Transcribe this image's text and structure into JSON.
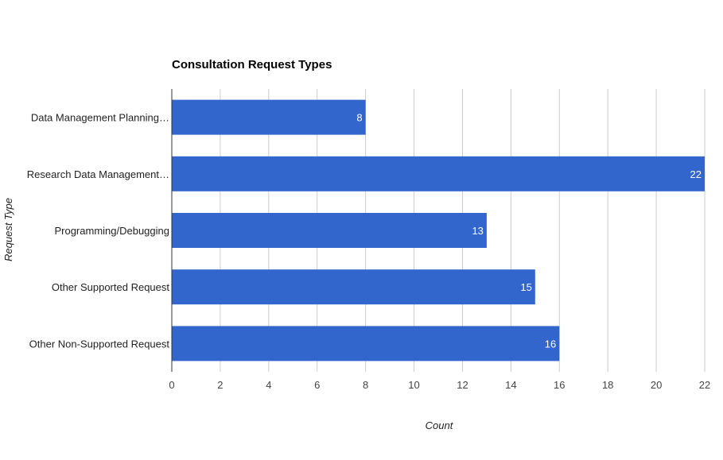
{
  "chart_data": {
    "type": "bar",
    "orientation": "horizontal",
    "title": "Consultation Request Types",
    "xlabel": "Count",
    "ylabel": "Request Type",
    "categories": [
      "Data Management Planning…",
      "Research Data Management…",
      "Programming/Debugging",
      "Other Supported Request",
      "Other Non-Supported Request"
    ],
    "values": [
      8,
      22,
      13,
      15,
      16
    ],
    "xlim": [
      0,
      22
    ],
    "ticks": [
      0,
      2,
      4,
      6,
      8,
      10,
      12,
      14,
      16,
      18,
      20,
      22
    ],
    "grid": true,
    "legend": "none",
    "bar_color": "#3366cc",
    "data_labels": true
  }
}
